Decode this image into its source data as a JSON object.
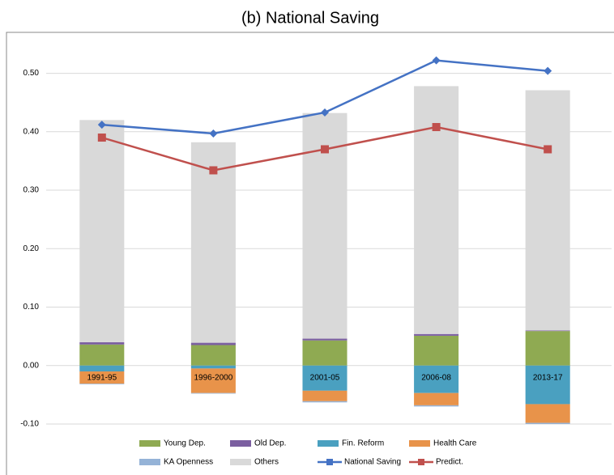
{
  "chart_data": {
    "type": "bar",
    "title": "(b) National Saving",
    "categories": [
      "1991-95",
      "1996-2000",
      "2001-05",
      "2006-08",
      "2013-17"
    ],
    "series": [
      {
        "name": "Young Dep.",
        "color": "#8faa52",
        "values": [
          0.036,
          0.035,
          0.043,
          0.051,
          0.059
        ]
      },
      {
        "name": "Old Dep.",
        "color": "#7b5fa0",
        "values": [
          0.004,
          0.004,
          0.003,
          0.003,
          0.001
        ]
      },
      {
        "name": "Fin. Reform",
        "color": "#4aa0c0",
        "values": [
          -0.01,
          -0.005,
          -0.043,
          -0.047,
          -0.066
        ]
      },
      {
        "name": "Health Care",
        "color": "#e8934a",
        "values": [
          -0.021,
          -0.042,
          -0.018,
          -0.021,
          -0.032
        ]
      },
      {
        "name": "KA Openness",
        "color": "#95b3d7",
        "values": [
          -0.001,
          -0.001,
          -0.002,
          -0.002,
          -0.002
        ]
      },
      {
        "name": "Others",
        "color": "#d9d9d9",
        "values": [
          0.38,
          0.343,
          0.386,
          0.424,
          0.411
        ]
      },
      {
        "name": "National Saving",
        "color": "#4472c4",
        "type": "line",
        "marker": "diamond",
        "values": [
          0.412,
          0.397,
          0.433,
          0.522,
          0.504
        ]
      },
      {
        "name": "Predict.",
        "color": "#c0504d",
        "type": "line",
        "marker": "square",
        "values": [
          0.39,
          0.334,
          0.37,
          0.408,
          0.37
        ]
      }
    ],
    "ylim": [
      -0.1,
      0.57
    ],
    "yticks": [
      {
        "value": -0.1,
        "label": "-0.10"
      },
      {
        "value": 0,
        "label": "0.00"
      },
      {
        "value": 0.1,
        "label": "0.10"
      },
      {
        "value": 0.2,
        "label": "0.20"
      },
      {
        "value": 0.3,
        "label": "0.30"
      },
      {
        "value": 0.4,
        "label": "0.40"
      },
      {
        "value": 0.5,
        "label": "0.50"
      }
    ],
    "grid": true
  }
}
